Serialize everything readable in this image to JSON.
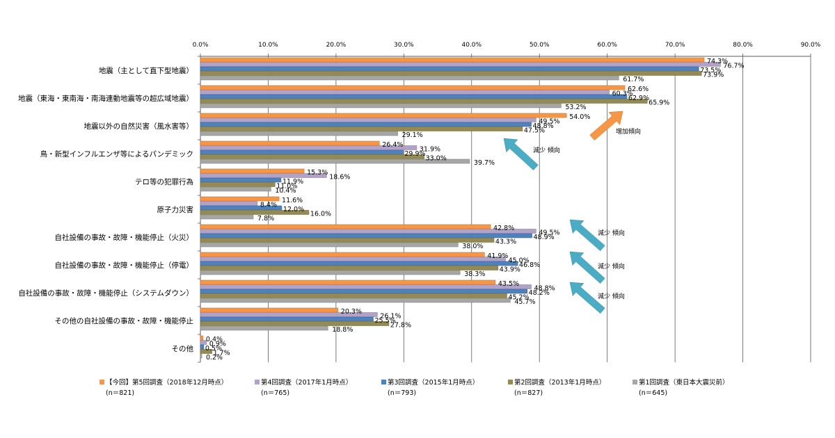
{
  "chart_data": {
    "type": "bar",
    "orientation": "horizontal",
    "title": "",
    "xlabel": "",
    "ylabel": "",
    "xlim": [
      0,
      90
    ],
    "x_ticks": [
      "0.0%",
      "10.0%",
      "20.0%",
      "30.0%",
      "40.0%",
      "50.0%",
      "60.0%",
      "70.0%",
      "80.0%",
      "90.0%"
    ],
    "x_tick_values": [
      0,
      10,
      20,
      30,
      40,
      50,
      60,
      70,
      80,
      90
    ],
    "grid": true,
    "legend_position": "bottom",
    "categories": [
      "地震（主として直下型地震）",
      "地震（東海・東南海・南海連動地震等の超広域地震）",
      "地震以外の自然災害（風水害等）",
      "鳥・新型インフルエンザ等によるパンデミック",
      "テロ等の犯罪行為",
      "原子力災害",
      "自社設備の事故・故障・機能停止（火災）",
      "自社設備の事故・故障・機能停止（停電）",
      "自社設備の事故・故障・機能停止（システムダウン）",
      "その他の自社設備の事故・故障・機能停止",
      "その他"
    ],
    "series": [
      {
        "name": "【今回】第5回調査（2018年12月時点）",
        "n": "(n＝821)",
        "color": "#F79646",
        "values": [
          74.3,
          62.6,
          54.0,
          26.4,
          15.3,
          11.6,
          42.8,
          41.9,
          43.5,
          20.3,
          0.4
        ]
      },
      {
        "name": "第4回調査（2017年1月時点）",
        "n": "(n＝765)",
        "color": "#B3A2C7",
        "values": [
          76.7,
          60.3,
          49.5,
          31.9,
          18.6,
          8.4,
          49.5,
          45.0,
          48.8,
          26.1,
          0.9
        ]
      },
      {
        "name": "第3回調査（2015年1月時点）",
        "n": "(n＝793)",
        "color": "#4F81BD",
        "values": [
          73.5,
          62.9,
          48.8,
          29.9,
          11.9,
          12.0,
          48.9,
          46.8,
          48.2,
          25.5,
          0.5
        ]
      },
      {
        "name": "第2回調査（2013年1月時点）",
        "n": "(n＝827)",
        "color": "#948A54",
        "values": [
          73.9,
          65.9,
          47.5,
          33.0,
          11.0,
          16.0,
          43.3,
          43.9,
          45.2,
          27.8,
          1.7
        ]
      },
      {
        "name": "第1回調査（東日本大震災前）",
        "n": "(n＝645)",
        "color": "#A6A6A6",
        "values": [
          61.7,
          53.2,
          29.1,
          39.7,
          10.4,
          7.8,
          38.0,
          38.3,
          45.7,
          18.8,
          0.2
        ]
      }
    ],
    "annotations": [
      {
        "text": "増加傾向",
        "type": "increase-arrow",
        "category_index": 1,
        "color": "#F79646"
      },
      {
        "text": "減少 傾向",
        "type": "decrease-arrow",
        "category_index": 3,
        "color": "#4BACC6"
      },
      {
        "text": "減少 傾向",
        "type": "decrease-arrow",
        "category_index": 6,
        "color": "#4BACC6"
      },
      {
        "text": "減少 傾向",
        "type": "decrease-arrow",
        "category_index": 7,
        "color": "#4BACC6"
      },
      {
        "text": "減少 傾向",
        "type": "decrease-arrow",
        "category_index": 8,
        "color": "#4BACC6"
      }
    ]
  }
}
